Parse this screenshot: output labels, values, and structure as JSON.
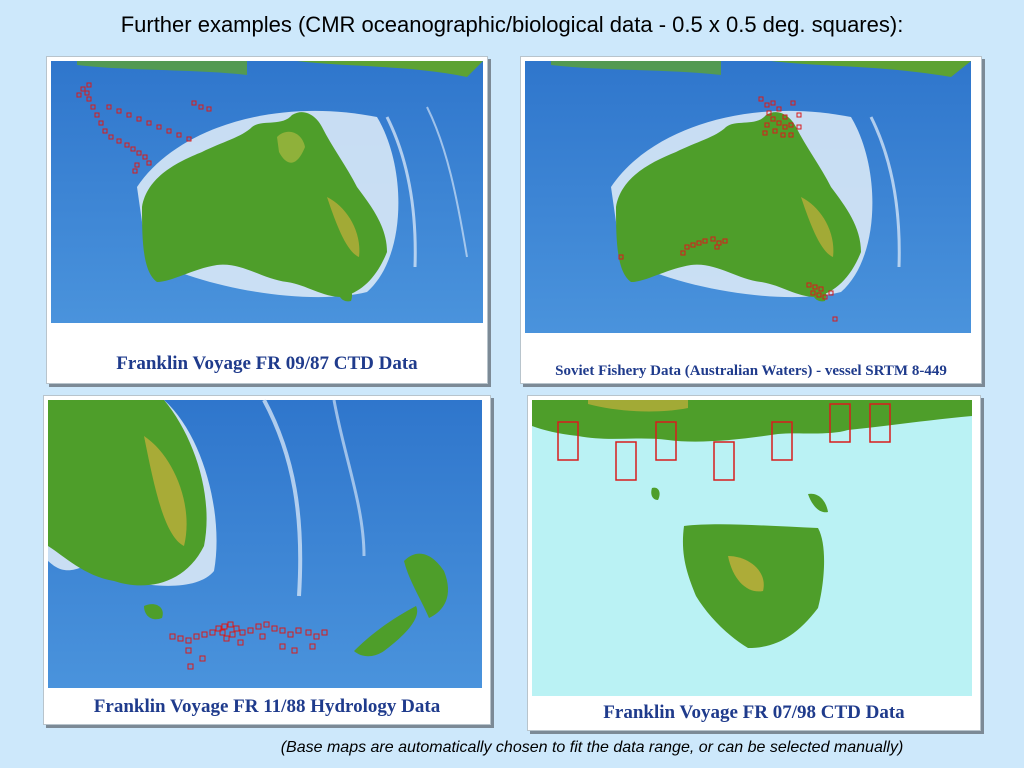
{
  "title": "Further examples (CMR oceanographic/biological data - 0.5 x 0.5 deg. squares):",
  "panels": [
    {
      "caption": "Franklin Voyage FR 09/87 CTD Data"
    },
    {
      "caption": "Soviet Fishery Data (Australian Waters) - vessel SRTM 8-449"
    },
    {
      "caption": "Franklin Voyage FR 11/88 Hydrology Data"
    },
    {
      "caption": "Franklin Voyage FR 07/98 CTD Data"
    }
  ],
  "footnote": "(Base maps are automatically chosen to fit the data range, or can be selected manually)",
  "colors": {
    "background": "#cde8fb",
    "ocean": "#3d86d6",
    "shelf": "#cfe3f5",
    "land": "#4e9e2a",
    "highland": "#c8b23a",
    "marker": "#d81c1c",
    "caption": "#1f3b8c"
  }
}
